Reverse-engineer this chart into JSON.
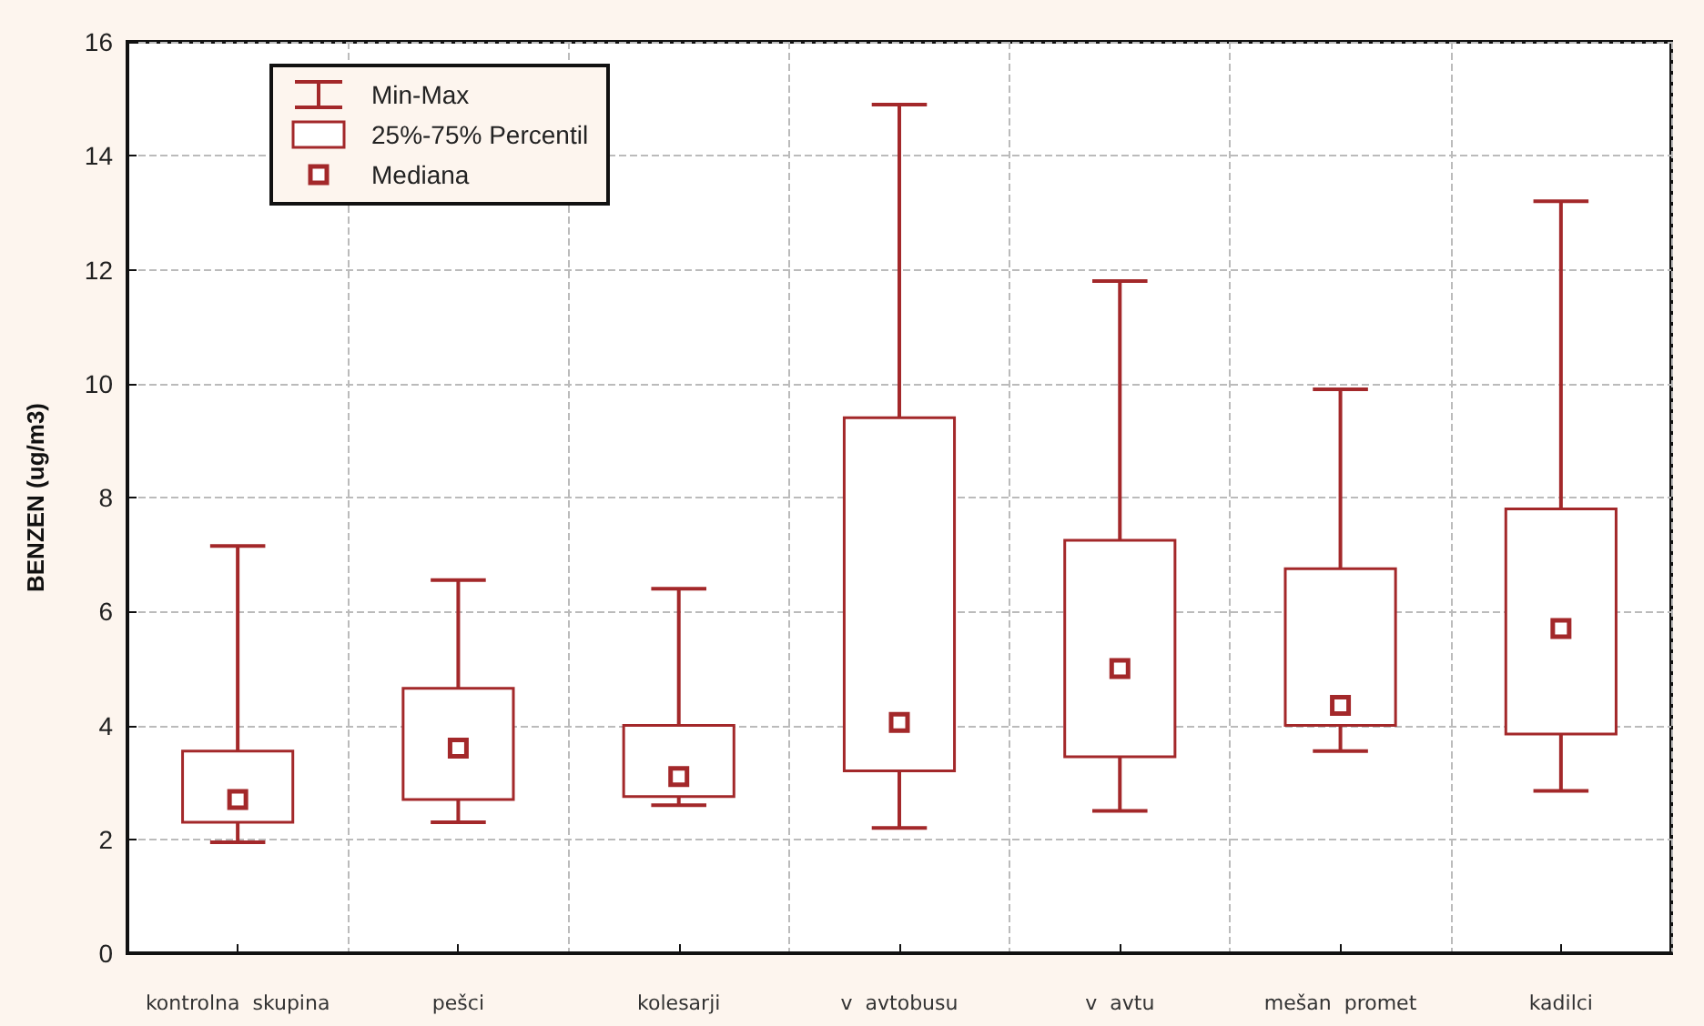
{
  "chart_data": {
    "type": "box",
    "ylabel": "BENZEN (ug/m3)",
    "categories": [
      "kontrolna  skupina",
      "pešci",
      "kolesarji",
      "v  avtobusu",
      "v  avtu",
      "mešan  promet",
      "kadilci"
    ],
    "boxes": [
      {
        "low": 1.95,
        "q1": 2.3,
        "median": 2.7,
        "q3": 3.55,
        "high": 7.15
      },
      {
        "low": 2.3,
        "q1": 2.7,
        "median": 3.6,
        "q3": 4.65,
        "high": 6.55
      },
      {
        "low": 2.6,
        "q1": 2.75,
        "median": 3.1,
        "q3": 4.0,
        "high": 6.4
      },
      {
        "low": 2.2,
        "q1": 3.2,
        "median": 4.05,
        "q3": 9.4,
        "high": 14.9
      },
      {
        "low": 2.5,
        "q1": 3.45,
        "median": 5.0,
        "q3": 7.25,
        "high": 11.8
      },
      {
        "low": 3.55,
        "q1": 4.0,
        "median": 4.35,
        "q3": 6.75,
        "high": 9.9
      },
      {
        "low": 2.85,
        "q1": 3.85,
        "median": 5.7,
        "q3": 7.8,
        "high": 13.2
      }
    ],
    "color": "#a3282a",
    "ylim": [
      0,
      16
    ],
    "yticks": [
      0,
      2,
      4,
      6,
      8,
      10,
      12,
      14,
      16
    ],
    "grid": true,
    "annotations": [
      "Min-Max",
      "25%-75% Percentil",
      "Mediana"
    ]
  }
}
